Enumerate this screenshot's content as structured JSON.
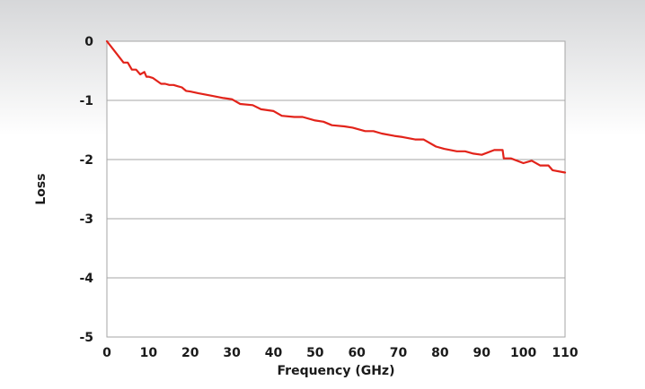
{
  "colors": {
    "background_top": "#d6d7d9",
    "background_bottom": "#ffffff",
    "plot_background": "#ffffff",
    "gridline": "#a6a6a6",
    "series": "#e2231a"
  },
  "chart_data": {
    "type": "line",
    "title": "",
    "xlabel": "Frequency (GHz)",
    "ylabel": "Loss",
    "xlim": [
      0,
      110
    ],
    "ylim": [
      -5,
      0
    ],
    "xticks": [
      "0",
      "10",
      "20",
      "30",
      "40",
      "50",
      "60",
      "70",
      "80",
      "90",
      "100",
      "110"
    ],
    "yticks": [
      "0",
      "-1",
      "-2",
      "-3",
      "-4",
      "-5"
    ],
    "grid": "horizontal",
    "legend": "none",
    "series": [
      {
        "x": [
          0,
          2,
          4,
          5,
          6,
          7,
          8,
          9,
          9.5,
          10,
          11,
          13,
          14,
          15,
          16,
          17,
          18,
          19,
          20,
          22,
          25,
          28,
          30,
          32,
          35,
          37,
          40,
          42,
          45,
          47,
          50,
          52,
          54,
          57,
          59,
          62,
          64,
          66,
          69,
          71,
          74,
          76,
          79,
          81,
          84,
          86,
          88,
          90,
          93,
          95,
          95.3,
          97,
          100,
          102,
          104,
          106,
          107,
          110
        ],
        "y": [
          0,
          -0.18,
          -0.36,
          -0.36,
          -0.48,
          -0.48,
          -0.56,
          -0.52,
          -0.6,
          -0.6,
          -0.62,
          -0.72,
          -0.72,
          -0.74,
          -0.74,
          -0.76,
          -0.78,
          -0.84,
          -0.85,
          -0.88,
          -0.92,
          -0.96,
          -0.98,
          -1.06,
          -1.08,
          -1.15,
          -1.18,
          -1.26,
          -1.28,
          -1.28,
          -1.34,
          -1.36,
          -1.42,
          -1.44,
          -1.46,
          -1.52,
          -1.52,
          -1.56,
          -1.6,
          -1.62,
          -1.66,
          -1.66,
          -1.78,
          -1.82,
          -1.86,
          -1.86,
          -1.9,
          -1.92,
          -1.84,
          -1.84,
          -1.98,
          -1.98,
          -2.06,
          -2.02,
          -2.1,
          -2.1,
          -2.18,
          -2.22
        ]
      }
    ]
  }
}
